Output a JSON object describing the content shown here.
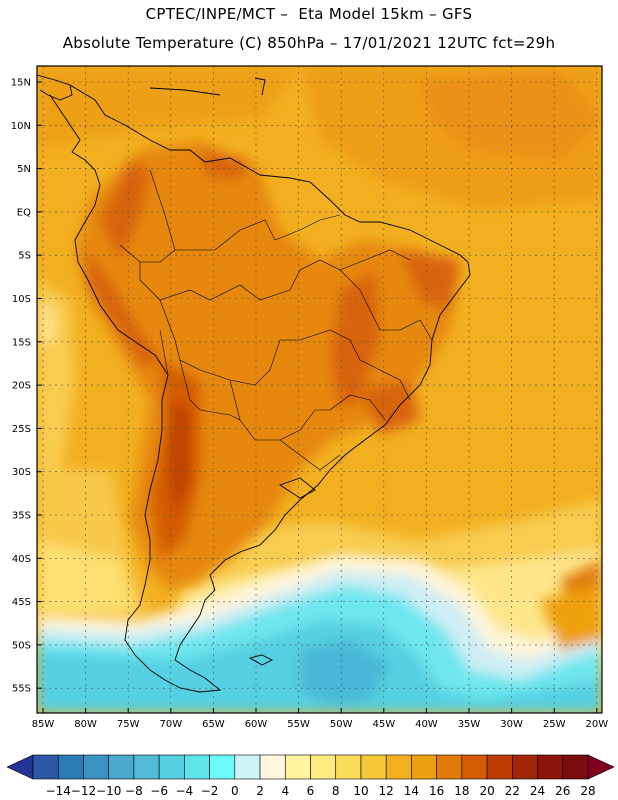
{
  "title_line1": "CPTEC/INPE/MCT –  Eta Model 15km – GFS",
  "title_line2": "Absolute Temperature (C) 850hPa – 17/01/2021 12UTC fct=29h",
  "lat_labels": [
    "15N",
    "10N",
    "5N",
    "EQ",
    "5S",
    "10S",
    "15S",
    "20S",
    "25S",
    "30S",
    "35S",
    "40S",
    "45S",
    "50S",
    "55S"
  ],
  "lon_labels": [
    "85W",
    "80W",
    "75W",
    "70W",
    "65W",
    "60W",
    "55W",
    "50W",
    "45W",
    "40W",
    "35W",
    "30W",
    "25W",
    "20W"
  ],
  "colorbar": {
    "labels": [
      "-14",
      "-12",
      "-10",
      "-8",
      "-6",
      "-4",
      "-2",
      "0",
      "2",
      "4",
      "6",
      "8",
      "10",
      "12",
      "14",
      "16",
      "18",
      "20",
      "22",
      "24",
      "26",
      "28"
    ],
    "colors": [
      "#253494",
      "#2b58a8",
      "#2c7bb6",
      "#3b93c3",
      "#4aa8cf",
      "#52bcd8",
      "#54d0e2",
      "#5ee4ea",
      "#6dfafa",
      "#cef4f8",
      "#fff7df",
      "#fff5a0",
      "#ffec80",
      "#fbdc5a",
      "#f5c83a",
      "#f2b020",
      "#eea010",
      "#e07d08",
      "#d45c05",
      "#bf3c06",
      "#a32609",
      "#8a160a",
      "#7a0c10",
      "#800020"
    ]
  },
  "colors": {
    "ocean_warm": "#f2b020",
    "land_hot": "#d45c05",
    "cold_band": "#54d0e2",
    "coast": "#000000"
  }
}
